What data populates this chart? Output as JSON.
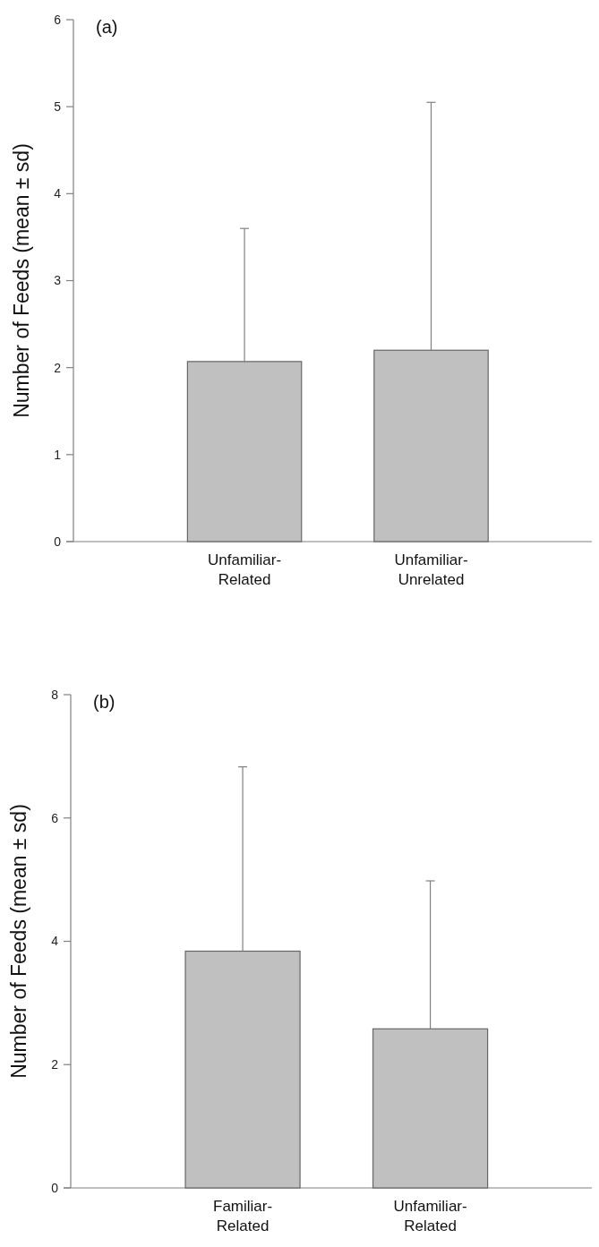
{
  "chart_data": [
    {
      "type": "bar",
      "title": "(a)",
      "ylabel": "Number of Feeds (mean ± sd)",
      "categories": [
        "Unfamiliar-\nRelated",
        "Unfamiliar-\nUnrelated"
      ],
      "values": [
        2.07,
        2.2
      ],
      "errors": [
        [
          2.07,
          3.6
        ],
        [
          2.2,
          5.05
        ]
      ],
      "color": "#c0c0c0",
      "ylim": [
        0,
        6
      ],
      "yticks": [
        0,
        1,
        2,
        3,
        4,
        5,
        6
      ],
      "grid": false
    },
    {
      "type": "bar",
      "title": "(b)",
      "ylabel": "Number of Feeds (mean ± sd)",
      "categories": [
        "Familiar-\nRelated",
        "Unfamiliar-\nRelated"
      ],
      "values": [
        3.84,
        2.58
      ],
      "errors": [
        [
          3.84,
          6.83
        ],
        [
          2.58,
          4.98
        ]
      ],
      "color": "#c0c0c0",
      "ylim": [
        0,
        8
      ],
      "yticks": [
        0,
        2,
        4,
        6,
        8
      ],
      "grid": false
    }
  ]
}
